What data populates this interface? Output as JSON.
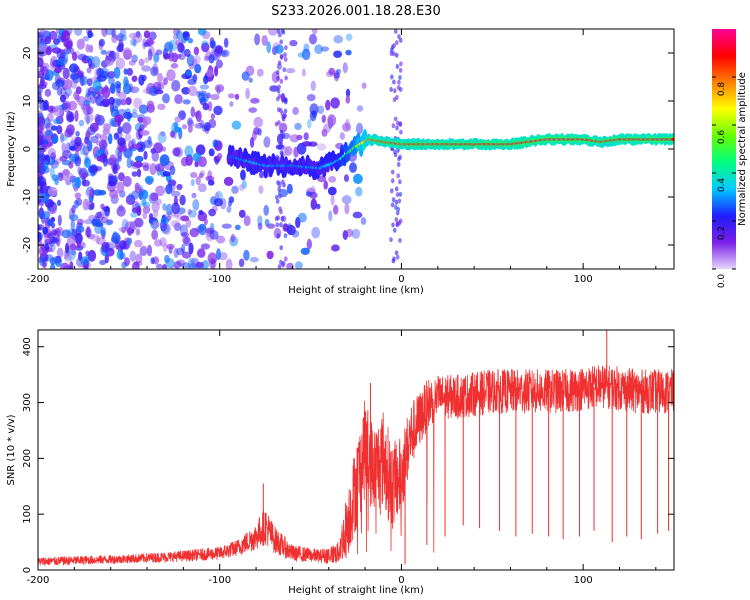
{
  "chart_data": [
    {
      "type": "heatmap",
      "title": "S233.2026.001.18.28.E30",
      "xlabel": "Height of straight line (km)",
      "ylabel": "Frequency (Hz)",
      "xlim": [
        -200,
        150
      ],
      "ylim": [
        -25,
        25
      ],
      "xticks": [
        -200,
        -100,
        0,
        100
      ],
      "yticks": [
        -20,
        -10,
        0,
        10,
        20
      ],
      "colorbar": {
        "label": "Normalized spectral amplitude",
        "range": [
          0,
          1
        ],
        "ticks": [
          "0.0",
          "0.2",
          "0.4",
          "0.6",
          "0.8"
        ],
        "colormap": [
          "#e6d8fc",
          "#7a1ee6",
          "#1e1eff",
          "#00c8ff",
          "#00ff80",
          "#64ff00",
          "#ffff00",
          "#ff8000",
          "#ff0000",
          "#ff0096"
        ]
      },
      "ridge": {
        "x": [
          -95,
          -85,
          -75,
          -60,
          -45,
          -35,
          -25,
          -18,
          -10,
          0,
          20,
          60,
          80,
          100,
          110,
          120,
          140,
          150
        ],
        "freq": [
          -1.5,
          -2.5,
          -3.5,
          -3.5,
          -4,
          -2.5,
          0.5,
          2,
          1.5,
          1,
          1,
          1,
          2,
          2,
          1.5,
          2,
          2,
          2
        ],
        "amplitude": [
          0.25,
          0.3,
          0.3,
          0.28,
          0.3,
          0.35,
          0.55,
          0.8,
          0.85,
          0.85,
          0.88,
          0.9,
          0.92,
          0.9,
          0.85,
          0.88,
          0.9,
          0.88
        ]
      },
      "noise_region": {
        "x": [
          -200,
          -40
        ],
        "freq": [
          -25,
          25
        ],
        "amplitude": [
          0.05,
          0.3
        ]
      }
    },
    {
      "type": "line",
      "title": "",
      "xlabel": "Height of straight line (km)",
      "ylabel": "SNR (10 * v/v)",
      "xlim": [
        -200,
        150
      ],
      "ylim": [
        0,
        430
      ],
      "xticks": [
        -200,
        -100,
        0,
        100
      ],
      "yticks": [
        0,
        100,
        200,
        300,
        400
      ],
      "color": "#f03030",
      "envelope": {
        "x": [
          -200,
          -150,
          -120,
          -100,
          -90,
          -80,
          -75,
          -70,
          -60,
          -45,
          -35,
          -30,
          -25,
          -20,
          -15,
          -10,
          -5,
          0,
          5,
          10,
          15,
          20,
          30,
          50,
          70,
          90,
          110,
          130,
          150
        ],
        "y": [
          15,
          20,
          25,
          30,
          40,
          60,
          80,
          55,
          30,
          25,
          30,
          80,
          150,
          220,
          180,
          200,
          150,
          170,
          240,
          270,
          300,
          310,
          310,
          320,
          320,
          320,
          330,
          320,
          320
        ],
        "noise": [
          8,
          8,
          10,
          12,
          15,
          25,
          35,
          25,
          15,
          12,
          20,
          60,
          80,
          90,
          80,
          90,
          80,
          70,
          60,
          50,
          45,
          40,
          40,
          40,
          40,
          40,
          40,
          40,
          40
        ]
      },
      "spikes": [
        {
          "x": -76,
          "y": 155
        },
        {
          "x": -17,
          "y": 335
        },
        {
          "x": 113,
          "y": 430
        }
      ],
      "dropouts": [
        {
          "x": 2,
          "y": 10
        },
        {
          "x": 14,
          "y": 45
        },
        {
          "x": 24,
          "y": 60
        },
        {
          "x": 34,
          "y": 80
        },
        {
          "x": 43,
          "y": 75
        },
        {
          "x": 54,
          "y": 70
        },
        {
          "x": 63,
          "y": 60
        },
        {
          "x": 72,
          "y": 65
        },
        {
          "x": 81,
          "y": 60
        },
        {
          "x": 89,
          "y": 55
        },
        {
          "x": 98,
          "y": 60
        },
        {
          "x": 106,
          "y": 70
        },
        {
          "x": 116,
          "y": 50
        },
        {
          "x": 124,
          "y": 60
        },
        {
          "x": 132,
          "y": 55
        },
        {
          "x": 141,
          "y": 65
        },
        {
          "x": 147,
          "y": 70
        }
      ]
    }
  ]
}
